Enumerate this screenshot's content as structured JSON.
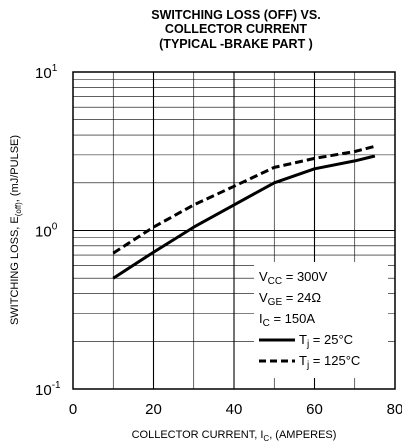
{
  "chart_data": {
    "type": "line",
    "title_lines": [
      "SWITCHING LOSS (OFF) VS.",
      "COLLECTOR CURRENT",
      "(TYPICAL -BRAKE PART )"
    ],
    "xlabel": {
      "main": "COLLECTOR CURRENT, I",
      "sub": "C",
      "tail": ", (AMPERES)"
    },
    "ylabel": {
      "main": "SWITCHING LOSS, E",
      "sub": "(off)",
      "tail": ", (mJ/PULSE)"
    },
    "x_range": [
      0,
      80
    ],
    "x_ticks": [
      {
        "value": 0,
        "label": "0"
      },
      {
        "value": 20,
        "label": "20"
      },
      {
        "value": 40,
        "label": "40"
      },
      {
        "value": 60,
        "label": "60"
      },
      {
        "value": 80,
        "label": "80"
      }
    ],
    "y_scale": "log",
    "y_range": [
      0.1,
      10
    ],
    "y_ticks": [
      {
        "value": 10,
        "base": "10",
        "exp": "1"
      },
      {
        "value": 1,
        "base": "10",
        "exp": "0"
      },
      {
        "value": 0.1,
        "base": "10",
        "exp": "-1"
      }
    ],
    "grid": true,
    "conditions": [
      {
        "main": "V",
        "sub": "CC",
        "tail": " = 300V"
      },
      {
        "main": "V",
        "sub": "GE",
        "tail": " = 24Ω"
      },
      {
        "main": "I",
        "sub": "C",
        "tail": " = 150A"
      }
    ],
    "series": [
      {
        "name": {
          "main": "T",
          "sub": "j",
          "tail": " = 25°C"
        },
        "style": "solid",
        "x": [
          10,
          20,
          30,
          40,
          50,
          60,
          70,
          75
        ],
        "y": [
          0.5,
          0.73,
          1.05,
          1.45,
          2.0,
          2.45,
          2.75,
          2.95
        ]
      },
      {
        "name": {
          "main": "T",
          "sub": "j",
          "tail": " = 125°C"
        },
        "style": "dashed",
        "x": [
          10,
          20,
          30,
          40,
          50,
          60,
          70,
          75
        ],
        "y": [
          0.72,
          1.05,
          1.45,
          1.9,
          2.5,
          2.85,
          3.15,
          3.4
        ]
      }
    ]
  }
}
